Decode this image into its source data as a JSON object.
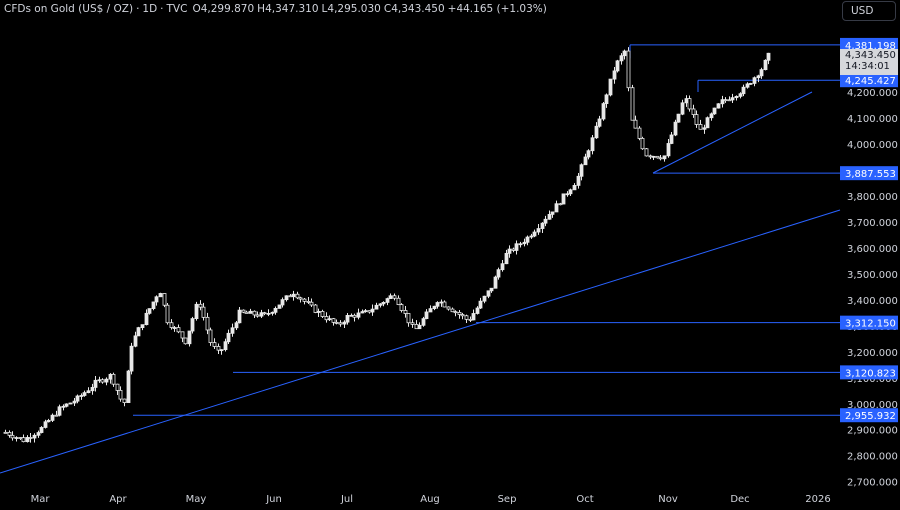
{
  "header": {
    "symbol": "CFDs on Gold (US$ / OZ)",
    "interval": "1D",
    "source": "TVC",
    "open_label": "O",
    "open": "4,299.870",
    "high_label": "H",
    "high": "4,347.310",
    "low_label": "L",
    "low": "4,295.030",
    "close_label": "C",
    "close": "4,343.450",
    "change": "+44.165 (+1.03%)"
  },
  "currency_button": "USD",
  "last_price": {
    "value": "4,343.450",
    "countdown": "14:34:01"
  },
  "colors": {
    "background": "#000000",
    "grid_text": "#d1d4dc",
    "lines": "#2962ff",
    "label_bg": "#2962ff",
    "candle": "#e8e8e8"
  },
  "chart_data": {
    "type": "candlestick",
    "title": "CFDs on Gold (US$ / OZ) · 1D · TVC",
    "ylim": [
      2678,
      4452
    ],
    "x_tick_labels": [
      "Mar",
      "Apr",
      "May",
      "Jun",
      "Jul",
      "Aug",
      "Sep",
      "Oct",
      "Nov",
      "Dec",
      "2026"
    ],
    "y_tick_labels": [
      "4,200.000",
      "4,100.000",
      "4,000.000",
      "3,900.000",
      "3,800.000",
      "3,700.000",
      "3,600.000",
      "3,500.000",
      "3,400.000",
      "3,300.000",
      "3,200.000",
      "3,100.000",
      "3,000.000",
      "2,900.000",
      "2,800.000",
      "2,700.000"
    ],
    "y_tick_values": [
      4200,
      4100,
      4000,
      3900,
      3800,
      3700,
      3600,
      3500,
      3400,
      3300,
      3200,
      3100,
      3000,
      2900,
      2800,
      2700
    ],
    "horizontal_levels": [
      {
        "value": 4381.198,
        "label": "4,381.198"
      },
      {
        "value": 4245.427,
        "label": "4,245.427"
      },
      {
        "value": 3887.553,
        "label": "3,887.553"
      },
      {
        "value": 3312.15,
        "label": "3,312.150"
      },
      {
        "value": 3120.823,
        "label": "3,120.823"
      },
      {
        "value": 2955.932,
        "label": "2,955.932"
      }
    ],
    "close_path": [
      [
        "2025-02-21",
        2890
      ],
      [
        "2025-02-28",
        2860
      ],
      [
        "2025-03-07",
        2905
      ],
      [
        "2025-03-14",
        2980
      ],
      [
        "2025-03-21",
        3020
      ],
      [
        "2025-03-28",
        3080
      ],
      [
        "2025-04-03",
        3110
      ],
      [
        "2025-04-08",
        2990
      ],
      [
        "2025-04-11",
        3230
      ],
      [
        "2025-04-16",
        3330
      ],
      [
        "2025-04-22",
        3440
      ],
      [
        "2025-04-25",
        3320
      ],
      [
        "2025-05-02",
        3240
      ],
      [
        "2025-05-07",
        3400
      ],
      [
        "2025-05-12",
        3230
      ],
      [
        "2025-05-15",
        3190
      ],
      [
        "2025-05-23",
        3350
      ],
      [
        "2025-06-02",
        3340
      ],
      [
        "2025-06-13",
        3430
      ],
      [
        "2025-06-20",
        3370
      ],
      [
        "2025-06-30",
        3300
      ],
      [
        "2025-07-04",
        3335
      ],
      [
        "2025-07-11",
        3350
      ],
      [
        "2025-07-22",
        3420
      ],
      [
        "2025-07-30",
        3280
      ],
      [
        "2025-08-08",
        3400
      ],
      [
        "2025-08-20",
        3320
      ],
      [
        "2025-08-29",
        3450
      ],
      [
        "2025-09-03",
        3570
      ],
      [
        "2025-09-12",
        3640
      ],
      [
        "2025-09-23",
        3760
      ],
      [
        "2025-10-01",
        3860
      ],
      [
        "2025-10-08",
        4040
      ],
      [
        "2025-10-16",
        4300
      ],
      [
        "2025-10-20",
        4360
      ],
      [
        "2025-10-22",
        4100
      ],
      [
        "2025-10-28",
        3960
      ],
      [
        "2025-11-04",
        3950
      ],
      [
        "2025-11-12",
        4180
      ],
      [
        "2025-11-18",
        4050
      ],
      [
        "2025-11-26",
        4160
      ],
      [
        "2025-12-05",
        4210
      ],
      [
        "2025-12-12",
        4290
      ],
      [
        "2025-12-15",
        4343.45
      ]
    ]
  }
}
